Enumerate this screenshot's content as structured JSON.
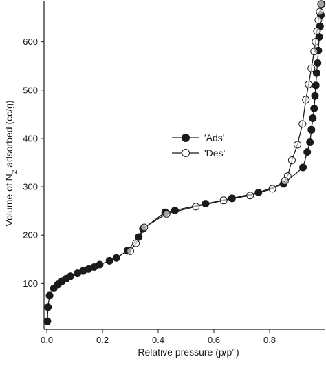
{
  "chart_data": {
    "type": "scatter",
    "xlabel": "Relative pressure (p/p°)",
    "ylabel": {
      "prefix": "Volume of N",
      "subscript": "2",
      "suffix": " adsorbed (cc/g)"
    },
    "xlim": [
      -0.01,
      1.0
    ],
    "ylim": [
      5,
      685
    ],
    "xticks": [
      0.0,
      0.2,
      0.4,
      0.6,
      0.8
    ],
    "xtick_labels": [
      "0.0",
      "0.2",
      "0.4",
      "0.6",
      "0.8"
    ],
    "yticks": [
      100,
      200,
      300,
      400,
      500,
      600
    ],
    "ytick_labels": [
      "100",
      "200",
      "300",
      "400",
      "500",
      "600"
    ],
    "grid": false,
    "legend_position": "center",
    "series": [
      {
        "name": "'Ads'",
        "marker": "filled-circle",
        "color": "#1a1a1a",
        "points": [
          [
            0.002,
            22
          ],
          [
            0.004,
            51
          ],
          [
            0.01,
            75
          ],
          [
            0.025,
            90
          ],
          [
            0.04,
            98
          ],
          [
            0.055,
            105
          ],
          [
            0.07,
            110
          ],
          [
            0.085,
            115
          ],
          [
            0.11,
            121
          ],
          [
            0.13,
            126
          ],
          [
            0.15,
            130
          ],
          [
            0.17,
            134
          ],
          [
            0.19,
            139
          ],
          [
            0.225,
            147
          ],
          [
            0.25,
            153
          ],
          [
            0.29,
            168
          ],
          [
            0.33,
            196
          ],
          [
            0.345,
            213
          ],
          [
            0.425,
            247
          ],
          [
            0.46,
            251
          ],
          [
            0.57,
            265
          ],
          [
            0.665,
            276
          ],
          [
            0.76,
            288
          ],
          [
            0.85,
            306
          ],
          [
            0.92,
            340
          ],
          [
            0.935,
            372
          ],
          [
            0.945,
            392
          ],
          [
            0.95,
            418
          ],
          [
            0.955,
            442
          ],
          [
            0.96,
            462
          ],
          [
            0.963,
            488
          ],
          [
            0.966,
            510
          ],
          [
            0.969,
            535
          ],
          [
            0.972,
            556
          ],
          [
            0.975,
            582
          ],
          [
            0.978,
            610
          ],
          [
            0.981,
            632
          ],
          [
            0.984,
            655
          ],
          [
            0.987,
            678
          ]
        ]
      },
      {
        "name": "'Des'",
        "marker": "open-circle",
        "color": "#1a1a1a",
        "points": [
          [
            0.985,
            678
          ],
          [
            0.98,
            662
          ],
          [
            0.975,
            645
          ],
          [
            0.97,
            622
          ],
          [
            0.965,
            600
          ],
          [
            0.96,
            580
          ],
          [
            0.95,
            545
          ],
          [
            0.94,
            512
          ],
          [
            0.93,
            480
          ],
          [
            0.918,
            430
          ],
          [
            0.9,
            387
          ],
          [
            0.88,
            355
          ],
          [
            0.865,
            322
          ],
          [
            0.855,
            312
          ],
          [
            0.81,
            296
          ],
          [
            0.73,
            282
          ],
          [
            0.635,
            272
          ],
          [
            0.535,
            259
          ],
          [
            0.43,
            244
          ],
          [
            0.35,
            216
          ],
          [
            0.32,
            183
          ],
          [
            0.3,
            167
          ]
        ]
      }
    ]
  }
}
